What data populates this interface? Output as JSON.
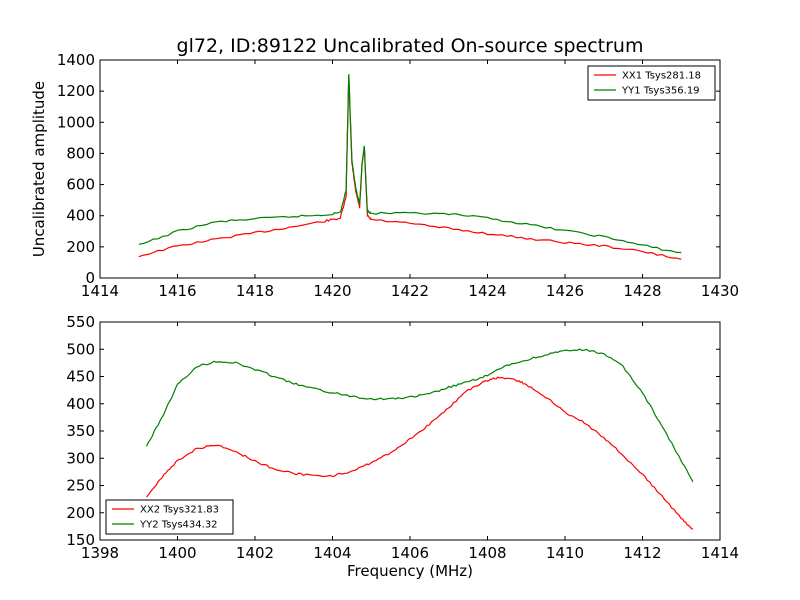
{
  "figure": {
    "title": "gl72, ID:89122 Uncalibrated On-source spectrum"
  },
  "chart_data": [
    {
      "type": "line",
      "title": "gl72, ID:89122 Uncalibrated On-source spectrum",
      "xlabel": "",
      "ylabel": "Uncalibrated amplitude",
      "xlim": [
        1414,
        1430
      ],
      "ylim": [
        0,
        1400
      ],
      "xticks": [
        "1414",
        "1416",
        "1418",
        "1420",
        "1422",
        "1424",
        "1426",
        "1428",
        "1430"
      ],
      "yticks": [
        "0",
        "200",
        "400",
        "600",
        "800",
        "1000",
        "1200",
        "1400"
      ],
      "legend_position": "top-right",
      "grid": false,
      "series": [
        {
          "name": "XX1 Tsys281.18",
          "color": "#ff0000",
          "x": [
            1415.0,
            1416.0,
            1417.0,
            1418.0,
            1419.0,
            1419.8,
            1420.2,
            1420.35,
            1420.42,
            1420.46,
            1420.5,
            1420.6,
            1420.7,
            1420.76,
            1420.82,
            1420.86,
            1420.9,
            1421.0,
            1422.0,
            1423.0,
            1424.0,
            1425.0,
            1426.0,
            1427.0,
            1428.0,
            1429.0
          ],
          "y": [
            140,
            205,
            250,
            290,
            330,
            365,
            385,
            520,
            1300,
            1020,
            740,
            560,
            450,
            720,
            840,
            620,
            400,
            375,
            350,
            318,
            285,
            255,
            228,
            205,
            170,
            120
          ]
        },
        {
          "name": "YY1 Tsys356.19",
          "color": "#008000",
          "x": [
            1415.0,
            1416.0,
            1417.0,
            1418.0,
            1419.0,
            1419.8,
            1420.2,
            1420.35,
            1420.42,
            1420.46,
            1420.5,
            1420.6,
            1420.7,
            1420.76,
            1420.82,
            1420.86,
            1420.9,
            1421.0,
            1422.0,
            1423.0,
            1424.0,
            1425.0,
            1426.0,
            1427.0,
            1428.0,
            1429.0
          ],
          "y": [
            210,
            300,
            360,
            380,
            395,
            405,
            420,
            560,
            1310,
            1040,
            760,
            580,
            470,
            730,
            850,
            640,
            430,
            415,
            415,
            410,
            385,
            345,
            305,
            265,
            210,
            160
          ]
        }
      ]
    },
    {
      "type": "line",
      "title": "",
      "xlabel": "Frequency (MHz)",
      "ylabel": "",
      "xlim": [
        1398,
        1414
      ],
      "ylim": [
        150,
        550
      ],
      "xticks": [
        "1398",
        "1400",
        "1402",
        "1404",
        "1406",
        "1408",
        "1410",
        "1412",
        "1414"
      ],
      "yticks": [
        "150",
        "200",
        "250",
        "300",
        "350",
        "400",
        "450",
        "500",
        "550"
      ],
      "legend_position": "bottom-left",
      "grid": false,
      "series": [
        {
          "name": "XX2 Tsys321.83",
          "color": "#ff0000",
          "x": [
            1399.2,
            1399.6,
            1400.0,
            1400.5,
            1401.0,
            1401.5,
            1402.0,
            1402.5,
            1403.0,
            1403.5,
            1404.0,
            1404.5,
            1405.0,
            1405.5,
            1406.0,
            1406.5,
            1407.0,
            1407.5,
            1408.0,
            1408.3,
            1408.7,
            1409.0,
            1409.5,
            1410.0,
            1410.5,
            1411.0,
            1411.5,
            1412.0,
            1412.5,
            1413.0,
            1413.3
          ],
          "y": [
            228,
            265,
            295,
            318,
            325,
            312,
            295,
            280,
            272,
            268,
            268,
            275,
            292,
            310,
            335,
            362,
            393,
            425,
            443,
            448,
            445,
            435,
            412,
            385,
            365,
            338,
            305,
            270,
            230,
            190,
            168
          ]
        },
        {
          "name": "YY2 Tsys434.32",
          "color": "#008000",
          "x": [
            1399.2,
            1399.6,
            1400.0,
            1400.5,
            1401.0,
            1401.5,
            1402.0,
            1402.5,
            1403.0,
            1403.5,
            1404.0,
            1404.5,
            1405.0,
            1405.5,
            1406.0,
            1406.5,
            1407.0,
            1407.5,
            1408.0,
            1408.5,
            1409.0,
            1409.5,
            1410.0,
            1410.5,
            1411.0,
            1411.5,
            1412.0,
            1412.5,
            1413.0,
            1413.3
          ],
          "y": [
            322,
            375,
            435,
            468,
            478,
            475,
            463,
            450,
            437,
            428,
            420,
            414,
            409,
            409,
            412,
            418,
            430,
            440,
            452,
            470,
            480,
            490,
            497,
            499,
            492,
            468,
            420,
            360,
            295,
            257
          ]
        }
      ]
    }
  ]
}
